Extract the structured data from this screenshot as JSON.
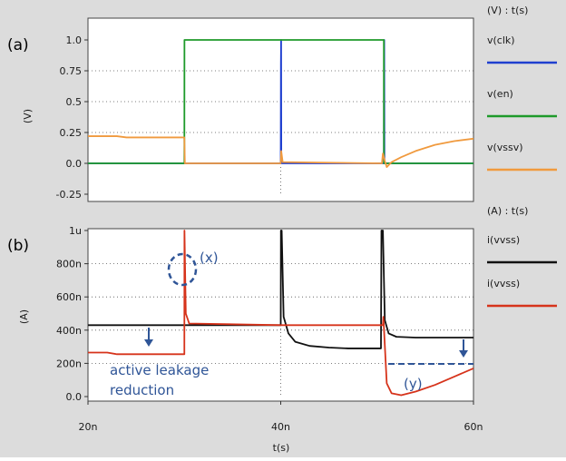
{
  "chart_data": [
    {
      "type": "line",
      "panel_label": "(a)",
      "header": "(V) : t(s)",
      "ylabel": "(V)",
      "xlim": [
        20,
        60
      ],
      "x_unit": "ns",
      "ylim": [
        -0.25,
        1.0
      ],
      "yticks": [
        -0.25,
        0.0,
        0.25,
        0.5,
        0.75,
        1.0
      ],
      "ytick_labels": [
        "-0.25",
        "0.0",
        "0.25",
        "0.5",
        "0.75",
        "1.0"
      ],
      "grid": "dotted",
      "legend_position": "right",
      "series": [
        {
          "name": "v(clk)",
          "color": "#1f3fcf",
          "points": [
            [
              20,
              0
            ],
            [
              40,
              0
            ],
            [
              40.02,
              0.8
            ],
            [
              40.04,
              1.0
            ],
            [
              40.06,
              0
            ],
            [
              50.7,
              0
            ],
            [
              50.72,
              0.9
            ],
            [
              50.74,
              1.0
            ],
            [
              50.76,
              0
            ],
            [
              60,
              0
            ]
          ]
        },
        {
          "name": "v(en)",
          "color": "#1e9a2a",
          "points": [
            [
              20,
              0
            ],
            [
              30,
              0
            ],
            [
              30.01,
              1.0
            ],
            [
              50.7,
              1.0
            ],
            [
              50.71,
              0
            ],
            [
              60,
              0
            ]
          ]
        },
        {
          "name": "v(vssv)",
          "color": "#f09a3e",
          "points": [
            [
              20,
              0.22
            ],
            [
              23,
              0.22
            ],
            [
              24,
              0.21
            ],
            [
              30,
              0.21
            ],
            [
              30.05,
              0.0
            ],
            [
              40,
              0
            ],
            [
              40.05,
              0.1
            ],
            [
              40.2,
              0.01
            ],
            [
              50.5,
              0
            ],
            [
              50.6,
              0.08
            ],
            [
              50.8,
              0.02
            ],
            [
              51,
              -0.03
            ],
            [
              51.5,
              0.01
            ],
            [
              52.5,
              0.05
            ],
            [
              54,
              0.1
            ],
            [
              56,
              0.15
            ],
            [
              58,
              0.18
            ],
            [
              60,
              0.2
            ]
          ]
        }
      ]
    },
    {
      "type": "line",
      "panel_label": "(b)",
      "header": "(A) : t(s)",
      "ylabel": "(A)",
      "xlabel": "t(s)",
      "xlim": [
        20,
        60
      ],
      "xticks": [
        20,
        40,
        60
      ],
      "xtick_labels": [
        "20n",
        "40n",
        "60n"
      ],
      "x_unit": "ns",
      "ylim": [
        0,
        1000
      ],
      "y_unit": "nA",
      "yticks": [
        0,
        200,
        400,
        600,
        800,
        1000
      ],
      "ytick_labels": [
        "0.0",
        "200n",
        "400n",
        "600n",
        "800n",
        "1u"
      ],
      "grid": "dotted",
      "legend_position": "right",
      "series": [
        {
          "name": "i(vvss)",
          "color": "#111111",
          "points": [
            [
              20,
              430
            ],
            [
              40,
              430
            ],
            [
              40.02,
              1000
            ],
            [
              40.1,
              1000
            ],
            [
              40.3,
              480
            ],
            [
              40.8,
              380
            ],
            [
              41.5,
              330
            ],
            [
              43,
              305
            ],
            [
              45,
              295
            ],
            [
              47,
              290
            ],
            [
              50.4,
              290
            ],
            [
              50.45,
              1000
            ],
            [
              50.6,
              1000
            ],
            [
              50.8,
              460
            ],
            [
              51.2,
              380
            ],
            [
              52,
              360
            ],
            [
              54,
              355
            ],
            [
              60,
              355
            ]
          ]
        },
        {
          "name": "i(vvss)",
          "color": "#d6331b",
          "points": [
            [
              20,
              265
            ],
            [
              22,
              265
            ],
            [
              23,
              255
            ],
            [
              30,
              255
            ],
            [
              30.01,
              1000
            ],
            [
              30.15,
              500
            ],
            [
              30.5,
              440
            ],
            [
              40,
              430
            ],
            [
              50.6,
              430
            ],
            [
              50.65,
              480
            ],
            [
              51,
              80
            ],
            [
              51.5,
              20
            ],
            [
              52.5,
              8
            ],
            [
              54,
              30
            ],
            [
              56,
              70
            ],
            [
              58,
              120
            ],
            [
              60,
              170
            ]
          ]
        }
      ],
      "annotations": {
        "x_label": "(x)",
        "y_label": "(y)",
        "leakage_text_line1": "active leakage",
        "leakage_text_line2": "reduction"
      }
    }
  ]
}
